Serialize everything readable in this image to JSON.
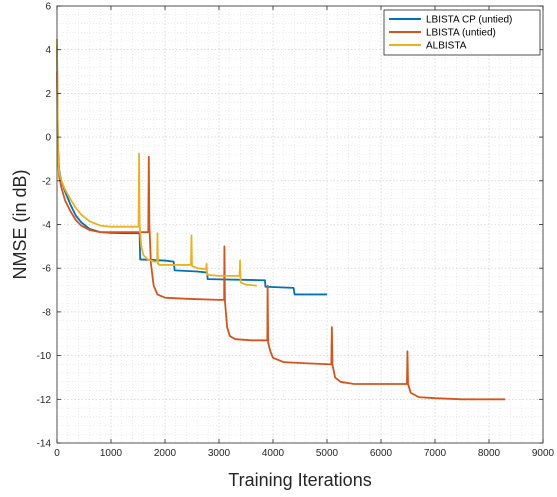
{
  "chart_data": {
    "type": "line",
    "title": "",
    "xlabel": "Training Iterations",
    "ylabel": "NMSE (in dB)",
    "xlim": [
      0,
      9000
    ],
    "ylim": [
      -14,
      6
    ],
    "xticks": [
      0,
      1000,
      2000,
      3000,
      4000,
      5000,
      6000,
      7000,
      8000,
      9000
    ],
    "yticks": [
      -14,
      -12,
      -10,
      -8,
      -6,
      -4,
      -2,
      0,
      2,
      4,
      6
    ],
    "grid": "major and minor (dotted)",
    "legend_position": "top-right",
    "series": [
      {
        "name": "LBISTA CP (untied)",
        "color": "#0072BD",
        "points": [
          [
            0,
            4.2
          ],
          [
            10,
            1.0
          ],
          [
            20,
            -0.5
          ],
          [
            40,
            -1.5
          ],
          [
            80,
            -2.0
          ],
          [
            150,
            -2.5
          ],
          [
            250,
            -3.1
          ],
          [
            350,
            -3.6
          ],
          [
            450,
            -3.9
          ],
          [
            600,
            -4.2
          ],
          [
            800,
            -4.35
          ],
          [
            1000,
            -4.38
          ],
          [
            1300,
            -4.4
          ],
          [
            1530,
            -4.4
          ],
          [
            1540,
            -5.6
          ],
          [
            2000,
            -5.65
          ],
          [
            2160,
            -5.7
          ],
          [
            2180,
            -6.1
          ],
          [
            2600,
            -6.15
          ],
          [
            2780,
            -6.2
          ],
          [
            2790,
            -6.5
          ],
          [
            3800,
            -6.55
          ],
          [
            3850,
            -6.55
          ],
          [
            3860,
            -6.85
          ],
          [
            4380,
            -6.9
          ],
          [
            4400,
            -7.2
          ],
          [
            5000,
            -7.2
          ]
        ]
      },
      {
        "name": "LBISTA (untied)",
        "color": "#D95319",
        "points": [
          [
            0,
            3.0
          ],
          [
            10,
            0.5
          ],
          [
            20,
            -1.0
          ],
          [
            40,
            -1.8
          ],
          [
            80,
            -2.3
          ],
          [
            150,
            -2.9
          ],
          [
            250,
            -3.4
          ],
          [
            350,
            -3.8
          ],
          [
            450,
            -4.05
          ],
          [
            600,
            -4.25
          ],
          [
            800,
            -4.35
          ],
          [
            1100,
            -4.35
          ],
          [
            1500,
            -4.35
          ],
          [
            1690,
            -4.35
          ],
          [
            1700,
            -0.9
          ],
          [
            1710,
            -4.0
          ],
          [
            1740,
            -5.8
          ],
          [
            1790,
            -6.8
          ],
          [
            1860,
            -7.2
          ],
          [
            2000,
            -7.35
          ],
          [
            2400,
            -7.4
          ],
          [
            3000,
            -7.45
          ],
          [
            3095,
            -7.45
          ],
          [
            3100,
            -5.0
          ],
          [
            3110,
            -7.5
          ],
          [
            3150,
            -8.7
          ],
          [
            3200,
            -9.1
          ],
          [
            3300,
            -9.25
          ],
          [
            3600,
            -9.3
          ],
          [
            3895,
            -9.3
          ],
          [
            3900,
            -6.8
          ],
          [
            3910,
            -9.4
          ],
          [
            3950,
            -9.8
          ],
          [
            4000,
            -10.1
          ],
          [
            4200,
            -10.3
          ],
          [
            4600,
            -10.35
          ],
          [
            5080,
            -10.4
          ],
          [
            5090,
            -8.7
          ],
          [
            5100,
            -10.4
          ],
          [
            5150,
            -11.0
          ],
          [
            5250,
            -11.2
          ],
          [
            5500,
            -11.3
          ],
          [
            6000,
            -11.3
          ],
          [
            6480,
            -11.3
          ],
          [
            6490,
            -9.8
          ],
          [
            6500,
            -11.3
          ],
          [
            6550,
            -11.7
          ],
          [
            6700,
            -11.9
          ],
          [
            7000,
            -11.95
          ],
          [
            7500,
            -12.0
          ],
          [
            8000,
            -12.0
          ],
          [
            8300,
            -12.0
          ]
        ]
      },
      {
        "name": "ALBISTA",
        "color": "#EDB120",
        "points": [
          [
            0,
            4.5
          ],
          [
            10,
            1.5
          ],
          [
            20,
            -0.8
          ],
          [
            40,
            -1.6
          ],
          [
            80,
            -2.0
          ],
          [
            150,
            -2.4
          ],
          [
            250,
            -2.85
          ],
          [
            350,
            -3.25
          ],
          [
            450,
            -3.55
          ],
          [
            600,
            -3.85
          ],
          [
            800,
            -4.05
          ],
          [
            1000,
            -4.1
          ],
          [
            1300,
            -4.1
          ],
          [
            1510,
            -4.1
          ],
          [
            1520,
            -0.75
          ],
          [
            1530,
            -4.0
          ],
          [
            1560,
            -5.0
          ],
          [
            1600,
            -5.4
          ],
          [
            1680,
            -5.6
          ],
          [
            1800,
            -5.7
          ],
          [
            1855,
            -5.7
          ],
          [
            1860,
            -4.4
          ],
          [
            1870,
            -5.8
          ],
          [
            1900,
            -5.85
          ],
          [
            2000,
            -5.85
          ],
          [
            2480,
            -5.85
          ],
          [
            2490,
            -4.5
          ],
          [
            2500,
            -5.9
          ],
          [
            2600,
            -6.0
          ],
          [
            2760,
            -6.05
          ],
          [
            2770,
            -5.8
          ],
          [
            2780,
            -6.3
          ],
          [
            3000,
            -6.35
          ],
          [
            3380,
            -6.35
          ],
          [
            3390,
            -5.65
          ],
          [
            3400,
            -6.65
          ],
          [
            3500,
            -6.75
          ],
          [
            3700,
            -6.8
          ]
        ]
      }
    ]
  }
}
